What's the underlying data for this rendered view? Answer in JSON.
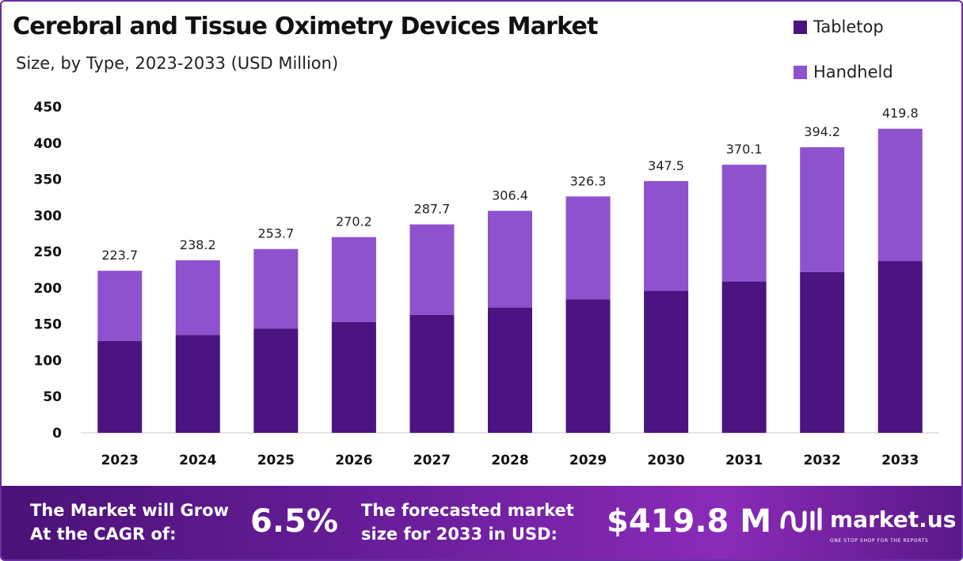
{
  "title": "Cerebral and Tissue Oximetry Devices Market",
  "subtitle": "Size, by Type, 2023-2033 (USD Million)",
  "legend": [
    {
      "label": "Tabletop",
      "color": "#4b1480"
    },
    {
      "label": "Handheld",
      "color": "#8e52cf"
    }
  ],
  "chart_data": {
    "type": "bar",
    "stacked": true,
    "categories": [
      "2023",
      "2024",
      "2025",
      "2026",
      "2027",
      "2028",
      "2029",
      "2030",
      "2031",
      "2032",
      "2033"
    ],
    "series": [
      {
        "name": "Tabletop",
        "color": "#4b1480",
        "values": [
          127,
          135,
          144,
          153,
          163,
          173,
          184,
          196,
          209,
          222,
          237
        ]
      },
      {
        "name": "Handheld",
        "color": "#8e52cf",
        "values": [
          96.7,
          103.2,
          109.7,
          117.2,
          124.7,
          133.4,
          142.3,
          151.5,
          161.1,
          172.2,
          182.8
        ]
      }
    ],
    "totals": [
      "223.7",
      "238.2",
      "253.7",
      "270.2",
      "287.7",
      "306.4",
      "326.3",
      "347.5",
      "370.1",
      "394.2",
      "419.8"
    ],
    "ylim": [
      0,
      450
    ],
    "yticks": [
      "0",
      "50",
      "100",
      "150",
      "200",
      "250",
      "300",
      "350",
      "400",
      "450"
    ],
    "grid": false,
    "legend_position": "top-right"
  },
  "footer": {
    "cagr_line1": "The Market will Grow",
    "cagr_line2": "At the CAGR of:",
    "cagr_value": "6.5%",
    "forecast_line1": "The forecasted market",
    "forecast_line2": "size for 2033 in USD:",
    "forecast_value": "$419.8 M",
    "brand_name": "market.us",
    "brand_tagline": "ONE STOP SHOP FOR THE REPORTS"
  }
}
